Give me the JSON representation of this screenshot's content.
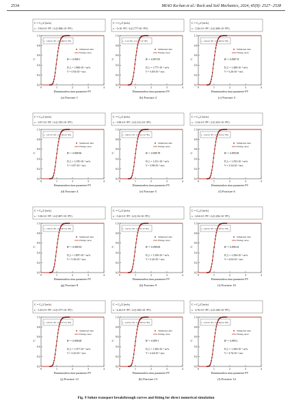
{
  "header": {
    "page_number": "2534",
    "journal": "MIAO Ka-han et al./ Rock and Soil Mechanics, 2024, 45(9): 2527−2538"
  },
  "figure_caption": "Fig. 9  Solute transport breakthrough curves and fitting for direct numerical simulation",
  "common": {
    "ylabel": "C",
    "xlabel": "Dimensionless time parameter PV",
    "legend_simulated": "Simulated data",
    "legend_fitting": "Fitting curve",
    "colors": {
      "simulated": "#8b1a1a",
      "fitting": "#c0392b"
    }
  },
  "panels": [
    {
      "label": "(a) Fracture 1",
      "r2": "R² = 0.998 3",
      "dl": "D_L = 1.968×10⁻⁹ m²/s",
      "v": "V = 5.94×10⁻⁵ m/s",
      "eq_box": "x − 5.94×10⁻⁵PV / 2√(1.968×10⁻⁹PV)"
    },
    {
      "label": "(b) Fracture 2",
      "r2": "R² = 0.997 83",
      "dl": "D_L = 1.777×10⁻⁹ m²/s",
      "v": "V = 5.00×10⁻⁵ m/s",
      "eq_box": "x − 5×10⁻⁵PV / 2√(1.777×10⁻⁹PV)"
    },
    {
      "label": "(c) Fracture 3",
      "r2": "R² = 0.998 74",
      "dl": "D_L = 1.408×10⁻⁹ m²/s",
      "v": "V = 5.26×10⁻⁵ m/s",
      "eq_box": "x − 5.26×10⁻⁵PV / 2√(1.408×10⁻⁹PV)"
    },
    {
      "label": "(d) Fracture 4",
      "r2": "R² = 0.998 96",
      "dl": "D_L = 1.195×10⁻⁹ m²/s",
      "v": "V = 3.07×10⁻⁵ m/s",
      "eq_box": "x − 3.07×10⁻⁵PV / 2√(1.195×10⁻⁹PV)"
    },
    {
      "label": "(e) Fracture 5",
      "r2": "R² = 0.998 78",
      "dl": "D_L = 1.211×10⁻⁹ m²/s",
      "v": "V = 3.98×10⁻⁵ m/s",
      "eq_box": "x − 3.98×10⁻⁵PV / 2√(1.211×10⁻⁹PV)"
    },
    {
      "label": "(f) Fracture 6",
      "r2": "R² = 0.999 08",
      "dl": "D_L = 1.253×10⁻⁹ m²/s",
      "v": "V = 3.34×10⁻⁵ m/s",
      "eq_box": "x − 3.34×10⁻⁵PV / 2√(1.253×10⁻⁹PV)"
    },
    {
      "label": "(g) Fracture 8",
      "r2": "R² = 0.998 54",
      "dl": "D_L = 1.807×10⁻⁹ m²/s",
      "v": "V = 5.36×10⁻⁵ m/s",
      "eq_box": "x − 5.36×10⁻⁵PV / 2√(1.807×10⁻⁹PV)"
    },
    {
      "label": "(h) Fracture 9",
      "r2": "R² = 0.998 84",
      "dl": "D_L = 1.330×10⁻⁹ m²/s",
      "v": "V = 5.42×10⁻⁵ m/s",
      "eq_box": "x − 5.42×10⁻⁵PV / 2√(1.33×10⁻⁹PV)"
    },
    {
      "label": "(i) Fracture 10",
      "r2": "R² = 0.998 24",
      "dl": "D_L = 1.256×10⁻⁹ m²/s",
      "v": "V = 4.04×10⁻⁵ m/s",
      "eq_box": "x − 4.04×10⁻⁵PV / 2√(1.256×10⁻⁹PV)"
    },
    {
      "label": "(j) Fracture 12",
      "r2": "R² = 0.998 68",
      "dl": "D_L = 1.377×10⁻⁹ m²/s",
      "v": "V = 3.43×10⁻⁵ m/s",
      "eq_box": "x − 3.43×10⁻⁵PV / 2√(1.377×10⁻⁹PV)"
    },
    {
      "label": "(k) Fracture 13",
      "r2": "R² = 0.999 1",
      "dl": "D_L = 1.365×10⁻⁹ m²/s",
      "v": "V = 4.44×10⁻⁵ m/s",
      "eq_box": "x − 4.44×10⁻⁵PV / 2√(1.365×10⁻⁹PV)"
    },
    {
      "label": "(l) Fracture 14",
      "r2": "R² = 0.999 2",
      "dl": "D_L = 1.349×10⁻⁹ m²/s",
      "v": "V = 4.76×10⁻⁵ m/s",
      "eq_box": "x − 4.76×10⁻⁵PV / 2√(1.349×10⁻⁹PV)"
    }
  ],
  "chart_data": {
    "type": "scatter",
    "xlabel": "Dimensionless time parameter PV",
    "ylabel": "C",
    "xlim": [
      0,
      4
    ],
    "ylim": [
      0,
      1.0
    ],
    "xticks": [
      0,
      1,
      2,
      3,
      4
    ],
    "yticks": [
      0,
      0.2,
      0.4,
      0.6,
      0.8,
      1.0
    ],
    "x": [
      0.0,
      0.4,
      0.8,
      1.0,
      1.2,
      1.6,
      2.0,
      3.0,
      4.0
    ],
    "series": [
      {
        "name": "Simulated data",
        "values": [
          0.0,
          0.0,
          0.05,
          0.5,
          0.87,
          0.99,
          1.0,
          1.0,
          1.0
        ]
      },
      {
        "name": "Fitting curve",
        "values": [
          0.0,
          0.0,
          0.05,
          0.5,
          0.87,
          0.99,
          1.0,
          1.0,
          1.0
        ]
      }
    ]
  }
}
